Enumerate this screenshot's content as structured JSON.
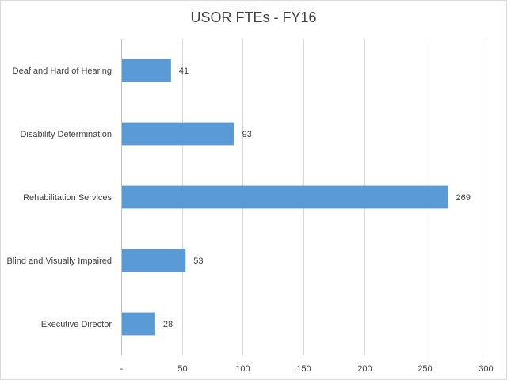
{
  "chart_data": {
    "type": "bar",
    "orientation": "horizontal",
    "title": "USOR FTEs - FY16",
    "categories": [
      "Deaf and Hard of Hearing",
      "Disability Determination",
      "Rehabilitation Services",
      "Blind and Visually Impaired",
      "Executive Director"
    ],
    "values": [
      41,
      93,
      269,
      53,
      28
    ],
    "xlim": [
      0,
      300
    ],
    "xticks": [
      0,
      50,
      100,
      150,
      200,
      250,
      300
    ],
    "xtick_labels": [
      "-",
      "50",
      "100",
      "150",
      "200",
      "250",
      "300"
    ],
    "xlabel": "",
    "ylabel": "",
    "grid": true,
    "legend": "none",
    "bar_color": "#5b9bd5"
  }
}
